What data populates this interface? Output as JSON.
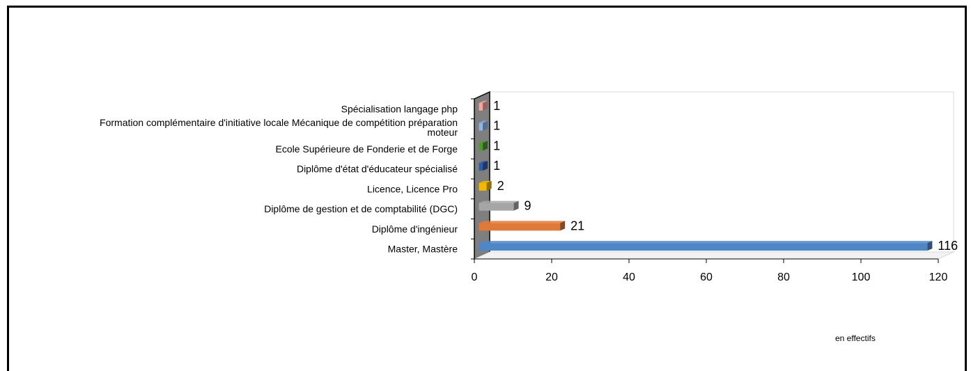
{
  "chart_data": {
    "type": "bar",
    "orientation": "horizontal",
    "categories": [
      "Master, Mastère",
      "Diplôme d'ingénieur",
      "Diplôme de gestion et de comptabilité (DGC)",
      "Licence, Licence Pro",
      "Diplôme d'état d'éducateur spécialisé",
      "Ecole Supérieure de Fonderie et de Forge",
      "Formation complémentaire d'initiative locale Mécanique de compétition préparation moteur",
      "Spécialisation langage php"
    ],
    "category_lines": [
      [
        "Master, Mastère"
      ],
      [
        "Diplôme d'ingénieur"
      ],
      [
        "Diplôme de gestion et de comptabilité (DGC)"
      ],
      [
        "Licence, Licence Pro"
      ],
      [
        "Diplôme d'état d'éducateur spécialisé"
      ],
      [
        "Ecole Supérieure de Fonderie et de Forge"
      ],
      [
        "Formation complémentaire d'initiative locale Mécanique de compétition préparation",
        "moteur"
      ],
      [
        "Spécialisation langage php"
      ]
    ],
    "values": [
      116,
      21,
      9,
      2,
      1,
      1,
      1,
      1
    ],
    "colors": [
      "#4f86c6",
      "#e07a3a",
      "#a6a6a6",
      "#f2b900",
      "#2f5aa8",
      "#4e9a2e",
      "#8fb5e8",
      "#f4a6a0"
    ],
    "xlim": [
      0,
      120
    ],
    "xticks": [
      0,
      20,
      40,
      60,
      80,
      100,
      120
    ],
    "data_labels": true,
    "grid": false
  },
  "note": "en effectifs"
}
